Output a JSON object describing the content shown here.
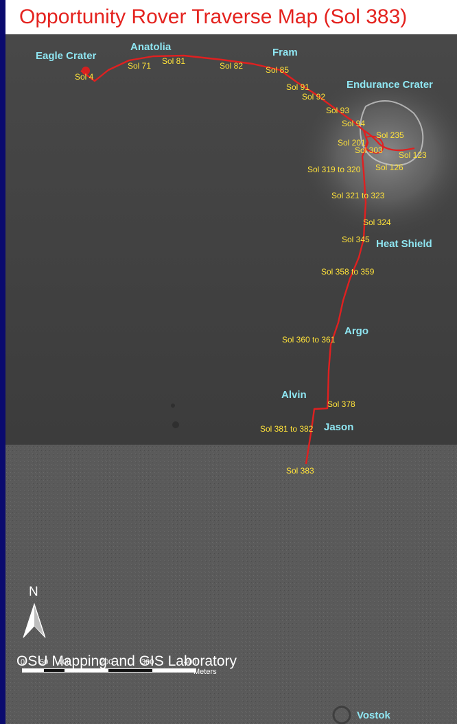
{
  "title": "Opportunity Rover Traverse Map (Sol 383)",
  "colors": {
    "frame": "#0a0a6e",
    "title": "#e4231f",
    "path": "#e02020",
    "sol_label": "#ffe23a",
    "place_label": "#8fe6f2"
  },
  "places": [
    "Eagle Crater",
    "Anatolia",
    "Fram",
    "Endurance Crater",
    "Heat Shield",
    "Argo",
    "Alvin",
    "Jason",
    "Vostok"
  ],
  "sols": [
    "Sol 4",
    "Sol 71",
    "Sol 81",
    "Sol 82",
    "Sol 85",
    "Sol 91",
    "Sol 92",
    "Sol 93",
    "Sol 94",
    "Sol 235",
    "Sol 201",
    "Sol 303",
    "Sol 123",
    "Sol 319 to 320",
    "Sol 126",
    "Sol 321 to 323",
    "Sol 324",
    "Sol 345",
    "Sol 358 to 359",
    "Sol 360 to 361",
    "Sol 378",
    "Sol 381 to 382",
    "Sol 383"
  ],
  "north_label": "N",
  "scale": {
    "ticks": [
      "0",
      "50",
      "100",
      "200",
      "300",
      "400"
    ],
    "unit": "Meters"
  },
  "credit": "OSU Mapping and GIS Laboratory"
}
